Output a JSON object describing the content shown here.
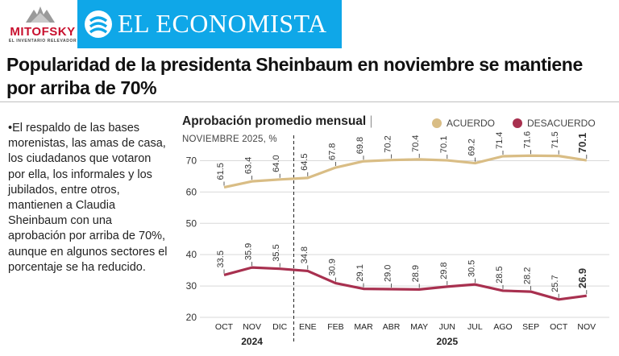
{
  "header": {
    "pollster_logo_text": "MITOFSKY",
    "pollster_tagline": "EL INVENTARIO RELEVADOR",
    "brand_name": "EL ECONOMISTA",
    "brand_color": "#0fa7e8",
    "pollster_color": "#c8102e"
  },
  "headline": "Popularidad de la presidenta Sheinbaum en noviembre se mantiene por arriba de 70%",
  "body_text": "•El respaldo de las bases morenistas, las amas de casa, los ciudadanos que votaron por ella, los informales y los jubilados, entre otros, mantienen a Claudia Sheinbaum con una aprobación por arriba de 70%, aunque en algunos sectores el porcentaje se ha reducido.",
  "chart_data": {
    "type": "line",
    "title": "Aprobación promedio mensual",
    "title_separator": "|",
    "subtitle": "NOVIEMBRE 2025, %",
    "categories": [
      "OCT",
      "NOV",
      "DIC",
      "ENE",
      "FEB",
      "MAR",
      "ABR",
      "MAY",
      "JUN",
      "JUL",
      "AGO",
      "SEP",
      "OCT",
      "NOV"
    ],
    "year_labels": [
      {
        "label": "2024",
        "categories": [
          "OCT",
          "NOV",
          "DIC"
        ]
      },
      {
        "label": "2025",
        "categories": [
          "ENE",
          "FEB",
          "MAR",
          "ABR",
          "MAY",
          "JUN",
          "JUL",
          "AGO",
          "SEP",
          "OCT",
          "NOV"
        ]
      }
    ],
    "series": [
      {
        "name": "ACUERDO",
        "color": "#d9bd85",
        "values": [
          61.5,
          63.4,
          64.0,
          64.5,
          67.8,
          69.8,
          70.2,
          70.4,
          70.1,
          69.2,
          71.4,
          71.6,
          71.5,
          70.1
        ]
      },
      {
        "name": "DESACUERDO",
        "color": "#a8304f",
        "values": [
          33.5,
          35.9,
          35.5,
          34.8,
          30.9,
          29.1,
          29.0,
          28.9,
          29.8,
          30.5,
          28.5,
          28.2,
          25.7,
          26.9
        ]
      }
    ],
    "value_labels": {
      "ACUERDO": [
        "61.5",
        "63.4",
        "64.0",
        "64.5",
        "67.8",
        "69.8",
        "70.2",
        "70.4",
        "70.1",
        "69.2",
        "71.4",
        "71.6",
        "71.5",
        "70.1"
      ],
      "DESACUERDO": [
        "33.5",
        "35.9",
        "35.5",
        "34.8",
        "30.9",
        "29.1",
        "29.0",
        "28.9",
        "29.8",
        "30.5",
        "28.5",
        "28.2",
        "25.7",
        "26.9"
      ]
    },
    "ylim": [
      20,
      75
    ],
    "yticks": [
      20,
      30,
      40,
      50,
      60,
      70
    ],
    "ytick_labels": [
      "20",
      "30",
      "40",
      "50",
      "60",
      "70"
    ],
    "gridlines": true,
    "year_divider_after": "DIC",
    "last_point_bold": true,
    "legend_position": "top-right"
  }
}
